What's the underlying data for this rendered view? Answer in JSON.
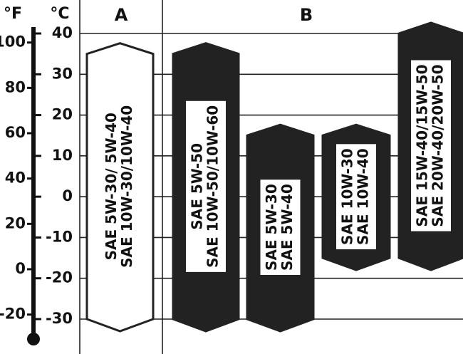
{
  "chart_data": {
    "type": "range",
    "ylabel": "°C",
    "y2label": "°F",
    "ylim": [
      -30,
      40
    ],
    "yticks": [
      40,
      30,
      20,
      10,
      0,
      -10,
      -20,
      -30
    ],
    "y2lim": [
      -22,
      104
    ],
    "y2ticks": [
      100,
      80,
      60,
      40,
      20,
      0,
      -20
    ],
    "groups": [
      "A",
      "B"
    ],
    "bars": [
      {
        "group": "A",
        "lines": [
          "SAE  5W-30/  5W-40",
          "SAE 10W-30/10W-40"
        ],
        "low": -30,
        "high": 35,
        "color": "#ffffff"
      },
      {
        "group": "B",
        "lines": [
          "SAE  5W-50",
          "SAE 10W-50/10W-60"
        ],
        "low": -30,
        "high": 35,
        "color": "#222222"
      },
      {
        "group": "B",
        "lines": [
          "SAE 5W-30",
          "SAE 5W-40"
        ],
        "low": -30,
        "high": 15,
        "color": "#222222"
      },
      {
        "group": "B",
        "lines": [
          "SAE 10W-30",
          "SAE 10W-40"
        ],
        "low": -15,
        "high": 15,
        "color": "#222222"
      },
      {
        "group": "B",
        "lines": [
          "SAE 15W-40/15W-50",
          "SAE 20W-40/20W-50"
        ],
        "low": -15,
        "high": 40,
        "color": "#222222"
      }
    ]
  }
}
